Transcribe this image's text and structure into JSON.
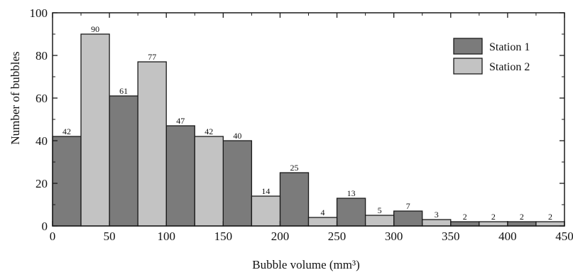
{
  "chart_data": {
    "type": "bar",
    "title": "",
    "xlabel": "Bubble volume (mm³)",
    "ylabel": "Number of bubbles",
    "xlim": [
      0,
      450
    ],
    "ylim": [
      0,
      100
    ],
    "xticks": [
      0,
      50,
      100,
      150,
      200,
      250,
      300,
      350,
      400,
      450
    ],
    "yticks": [
      0,
      20,
      40,
      60,
      80,
      100
    ],
    "bin_width": 25,
    "grid": false,
    "legend_position": "top-right",
    "series": [
      {
        "name": "Station 1",
        "color": "#7b7b7b",
        "bins": [
          {
            "x_start": 0,
            "value": 42
          },
          {
            "x_start": 50,
            "value": 61
          },
          {
            "x_start": 100,
            "value": 47
          },
          {
            "x_start": 150,
            "value": 40
          },
          {
            "x_start": 200,
            "value": 25
          },
          {
            "x_start": 250,
            "value": 13
          },
          {
            "x_start": 300,
            "value": 7
          },
          {
            "x_start": 350,
            "value": 2
          },
          {
            "x_start": 400,
            "value": 2
          }
        ]
      },
      {
        "name": "Station 2",
        "color": "#c3c3c3",
        "bins": [
          {
            "x_start": 25,
            "value": 90
          },
          {
            "x_start": 75,
            "value": 77
          },
          {
            "x_start": 125,
            "value": 42
          },
          {
            "x_start": 175,
            "value": 14
          },
          {
            "x_start": 225,
            "value": 4
          },
          {
            "x_start": 275,
            "value": 5
          },
          {
            "x_start": 325,
            "value": 3
          },
          {
            "x_start": 375,
            "value": 2
          },
          {
            "x_start": 425,
            "value": 2
          }
        ]
      }
    ]
  }
}
